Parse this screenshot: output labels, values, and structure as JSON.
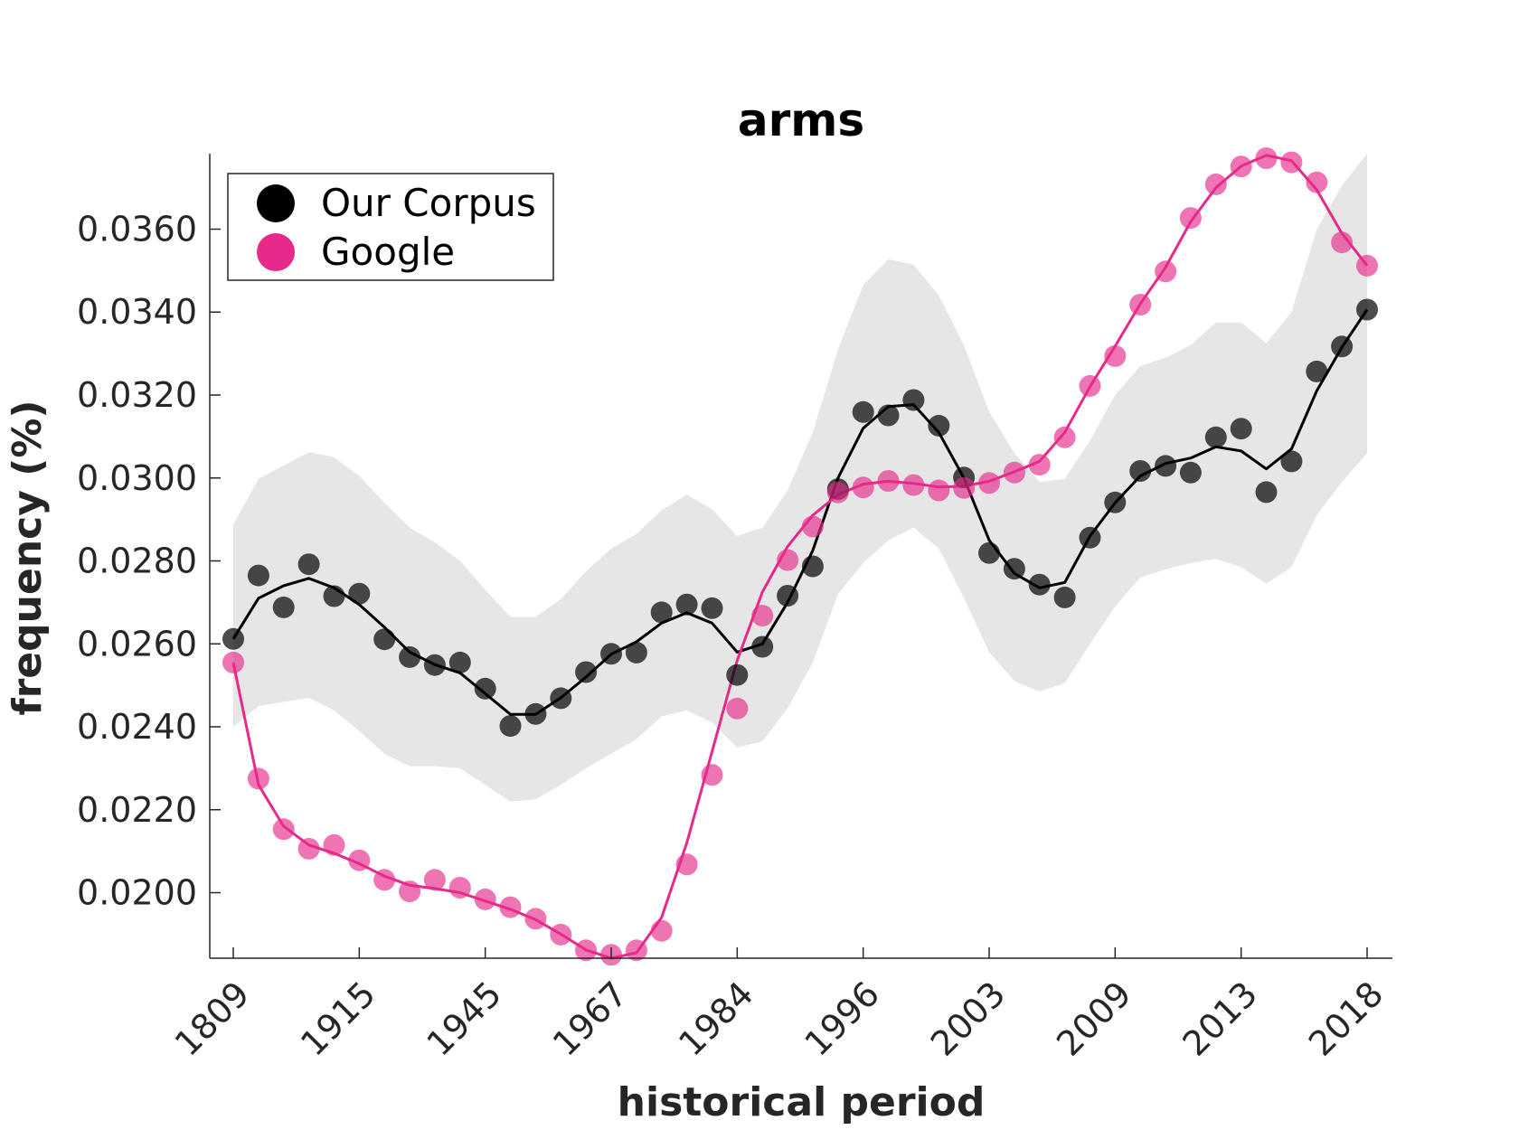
{
  "chart_data": {
    "type": "line",
    "title": "arms",
    "xlabel": "historical period",
    "ylabel": "frequency (%)",
    "x_tick_labels": [
      "1809",
      "1915",
      "1945",
      "1967",
      "1984",
      "1996",
      "2003",
      "2009",
      "2013",
      "2018"
    ],
    "y_ticks": [
      "0.0200",
      "0.0220",
      "0.0240",
      "0.0260",
      "0.0280",
      "0.0300",
      "0.0320",
      "0.0340",
      "0.0360"
    ],
    "ylim": [
      0.01842,
      0.03782
    ],
    "legend_position": "top-left",
    "grid": false,
    "series": [
      {
        "name": "Our Corpus",
        "color": "#000000",
        "points": [
          0.02612,
          0.02765,
          0.02688,
          0.02792,
          0.02715,
          0.02721,
          0.02611,
          0.02568,
          0.02549,
          0.02555,
          0.02492,
          0.02402,
          0.02431,
          0.02469,
          0.02532,
          0.02576,
          0.02579,
          0.02676,
          0.02695,
          0.02686,
          0.02525,
          0.02593,
          0.02716,
          0.02787,
          0.02973,
          0.03159,
          0.03151,
          0.03188,
          0.03126,
          0.03001,
          0.02819,
          0.02781,
          0.02743,
          0.02712,
          0.02856,
          0.02941,
          0.03017,
          0.03029,
          0.03013,
          0.03098,
          0.03119,
          0.02966,
          0.0304,
          0.03257,
          0.03317,
          0.03406
        ],
        "smooth": [
          0.02612,
          0.0271,
          0.0274,
          0.02758,
          0.02735,
          0.02695,
          0.0264,
          0.0258,
          0.0255,
          0.0253,
          0.0248,
          0.0243,
          0.0243,
          0.0247,
          0.0252,
          0.02575,
          0.02605,
          0.0265,
          0.02675,
          0.0265,
          0.0258,
          0.026,
          0.027,
          0.02825,
          0.03,
          0.0312,
          0.03172,
          0.03177,
          0.0311,
          0.03,
          0.0285,
          0.0277,
          0.02735,
          0.02748,
          0.0286,
          0.0294,
          0.03005,
          0.03035,
          0.03048,
          0.03075,
          0.03065,
          0.03022,
          0.0307,
          0.0321,
          0.03315,
          0.03406
        ],
        "ci_upper": [
          0.02888,
          0.02998,
          0.0303,
          0.03062,
          0.0305,
          0.03005,
          0.0294,
          0.0288,
          0.02845,
          0.028,
          0.0273,
          0.02665,
          0.02665,
          0.02708,
          0.02775,
          0.0283,
          0.02865,
          0.02922,
          0.0296,
          0.02925,
          0.0286,
          0.0288,
          0.0297,
          0.0311,
          0.0331,
          0.03465,
          0.03527,
          0.03515,
          0.0344,
          0.0332,
          0.0316,
          0.0306,
          0.0299,
          0.02998,
          0.0309,
          0.032,
          0.0327,
          0.0329,
          0.0332,
          0.03375,
          0.03375,
          0.03325,
          0.034,
          0.036,
          0.03705,
          0.03782
        ],
        "ci_lower": [
          0.024,
          0.0245,
          0.0246,
          0.0247,
          0.0244,
          0.0239,
          0.02335,
          0.02305,
          0.02305,
          0.023,
          0.0226,
          0.0222,
          0.02225,
          0.0226,
          0.023,
          0.02335,
          0.0237,
          0.02425,
          0.0244,
          0.0241,
          0.0235,
          0.02365,
          0.02445,
          0.02555,
          0.0272,
          0.02795,
          0.0285,
          0.0288,
          0.0283,
          0.0271,
          0.0258,
          0.0251,
          0.02485,
          0.02505,
          0.026,
          0.0269,
          0.0276,
          0.0278,
          0.02795,
          0.02805,
          0.02785,
          0.02745,
          0.02785,
          0.0291,
          0.0299,
          0.0306
        ]
      },
      {
        "name": "Google",
        "color": "#e7298a",
        "points": [
          0.02555,
          0.02275,
          0.02153,
          0.02106,
          0.02115,
          0.02078,
          0.02031,
          0.02003,
          0.02031,
          0.02012,
          0.01984,
          0.01965,
          0.01937,
          0.01899,
          0.01861,
          0.0185,
          0.01861,
          0.01908,
          0.02068,
          0.02284,
          0.02444,
          0.02668,
          0.02802,
          0.02883,
          0.02965,
          0.02977,
          0.02993,
          0.02983,
          0.0297,
          0.02976,
          0.02988,
          0.03013,
          0.03032,
          0.03098,
          0.03222,
          0.03294,
          0.03418,
          0.03498,
          0.03627,
          0.03708,
          0.03751,
          0.03771,
          0.03761,
          0.03713,
          0.03568,
          0.03512
        ],
        "smooth": [
          0.02555,
          0.0226,
          0.0216,
          0.02115,
          0.02095,
          0.0207,
          0.0204,
          0.02018,
          0.0201,
          0.02,
          0.0198,
          0.0196,
          0.01935,
          0.019,
          0.01862,
          0.01842,
          0.01855,
          0.0194,
          0.0212,
          0.0234,
          0.0256,
          0.02725,
          0.02835,
          0.0291,
          0.0296,
          0.02985,
          0.02992,
          0.02987,
          0.02978,
          0.0298,
          0.02992,
          0.03015,
          0.0304,
          0.0311,
          0.0322,
          0.03318,
          0.0342,
          0.03508,
          0.03618,
          0.037,
          0.03752,
          0.03778,
          0.03765,
          0.03695,
          0.0359,
          0.03512
        ]
      }
    ]
  }
}
